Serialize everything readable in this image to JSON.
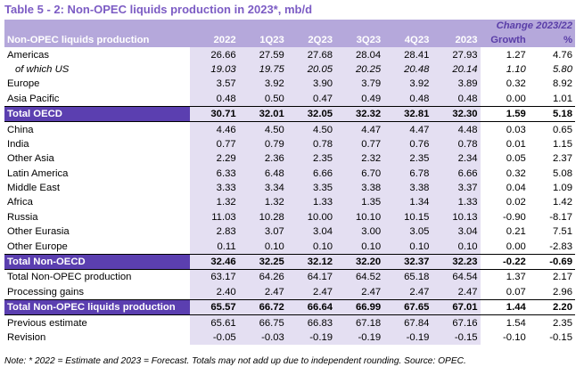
{
  "title": "Table 5 - 2: Non-OPEC liquids production in 2023*, mb/d",
  "header": {
    "change_label": "Change 2023/22",
    "row_label": "Non-OPEC liquids production",
    "columns": [
      "2022",
      "1Q23",
      "2Q23",
      "3Q23",
      "4Q23",
      "2023",
      "Growth",
      "%"
    ]
  },
  "rows": [
    {
      "label": "Americas",
      "values": [
        "26.66",
        "27.59",
        "27.68",
        "28.04",
        "28.41",
        "27.93",
        "1.27",
        "4.76"
      ]
    },
    {
      "label": "of which US",
      "values": [
        "19.03",
        "19.75",
        "20.05",
        "20.25",
        "20.48",
        "20.14",
        "1.10",
        "5.80"
      ]
    },
    {
      "label": "Europe",
      "values": [
        "3.57",
        "3.92",
        "3.90",
        "3.79",
        "3.92",
        "3.89",
        "0.32",
        "8.92"
      ]
    },
    {
      "label": "Asia Pacific",
      "values": [
        "0.48",
        "0.50",
        "0.47",
        "0.49",
        "0.48",
        "0.48",
        "0.00",
        "1.01"
      ]
    },
    {
      "label": "Total OECD",
      "values": [
        "30.71",
        "32.01",
        "32.05",
        "32.32",
        "32.81",
        "32.30",
        "1.59",
        "5.18"
      ]
    },
    {
      "label": "China",
      "values": [
        "4.46",
        "4.50",
        "4.50",
        "4.47",
        "4.47",
        "4.48",
        "0.03",
        "0.65"
      ]
    },
    {
      "label": "India",
      "values": [
        "0.77",
        "0.79",
        "0.78",
        "0.77",
        "0.76",
        "0.78",
        "0.01",
        "1.15"
      ]
    },
    {
      "label": "Other Asia",
      "values": [
        "2.29",
        "2.36",
        "2.35",
        "2.32",
        "2.35",
        "2.34",
        "0.05",
        "2.37"
      ]
    },
    {
      "label": "Latin America",
      "values": [
        "6.33",
        "6.48",
        "6.66",
        "6.70",
        "6.78",
        "6.66",
        "0.32",
        "5.08"
      ]
    },
    {
      "label": "Middle East",
      "values": [
        "3.33",
        "3.34",
        "3.35",
        "3.38",
        "3.38",
        "3.37",
        "0.04",
        "1.09"
      ]
    },
    {
      "label": "Africa",
      "values": [
        "1.32",
        "1.32",
        "1.33",
        "1.35",
        "1.34",
        "1.33",
        "0.02",
        "1.42"
      ]
    },
    {
      "label": "Russia",
      "values": [
        "11.03",
        "10.28",
        "10.00",
        "10.10",
        "10.15",
        "10.13",
        "-0.90",
        "-8.17"
      ]
    },
    {
      "label": "Other Eurasia",
      "values": [
        "2.83",
        "3.07",
        "3.04",
        "3.00",
        "3.05",
        "3.04",
        "0.21",
        "7.51"
      ]
    },
    {
      "label": "Other Europe",
      "values": [
        "0.11",
        "0.10",
        "0.10",
        "0.10",
        "0.10",
        "0.10",
        "0.00",
        "-2.83"
      ]
    },
    {
      "label": "Total Non-OECD",
      "values": [
        "32.46",
        "32.25",
        "32.12",
        "32.20",
        "32.37",
        "32.23",
        "-0.22",
        "-0.69"
      ]
    },
    {
      "label": "Total Non-OPEC production",
      "values": [
        "63.17",
        "64.26",
        "64.17",
        "64.52",
        "65.18",
        "64.54",
        "1.37",
        "2.17"
      ]
    },
    {
      "label": "Processing gains",
      "values": [
        "2.40",
        "2.47",
        "2.47",
        "2.47",
        "2.47",
        "2.47",
        "0.07",
        "2.96"
      ]
    },
    {
      "label": "Total Non-OPEC liquids production",
      "values": [
        "65.57",
        "66.72",
        "66.64",
        "66.99",
        "67.65",
        "67.01",
        "1.44",
        "2.20"
      ]
    },
    {
      "label": "Previous estimate",
      "values": [
        "65.61",
        "66.75",
        "66.83",
        "67.18",
        "67.84",
        "67.16",
        "1.54",
        "2.35"
      ]
    },
    {
      "label": "Revision",
      "values": [
        "-0.05",
        "-0.03",
        "-0.19",
        "-0.19",
        "-0.19",
        "-0.15",
        "-0.10",
        "-0.15"
      ]
    }
  ],
  "note": "Note: * 2022 = Estimate and 2023 = Forecast. Totals may not add up due to independent rounding. Source: OPEC."
}
